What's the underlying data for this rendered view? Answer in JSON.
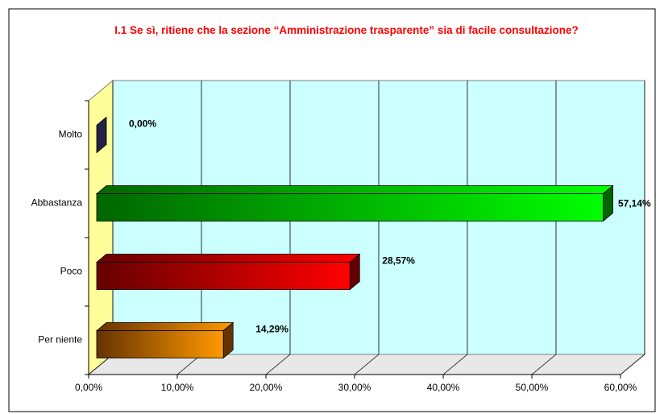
{
  "chart_data": {
    "type": "bar3d_horizontal",
    "title": "I.1 Se sì, ritiene che la sezione “Amministrazione trasparente” sia di facile consultazione?",
    "categories": [
      "Molto",
      "Abbastanza",
      "Poco",
      "Per niente"
    ],
    "values": [
      0,
      57.14,
      28.57,
      14.29
    ],
    "value_labels": [
      "0,00%",
      "57,14%",
      "28,57%",
      "14,29%"
    ],
    "colors": [
      [
        "#222244",
        "#444477"
      ],
      [
        "#006600",
        "#00ff00"
      ],
      [
        "#660000",
        "#ff0000"
      ],
      [
        "#663300",
        "#ff9900"
      ]
    ],
    "xlim": [
      0,
      60
    ],
    "xticks": [
      {
        "value": 0,
        "label": "0,00%"
      },
      {
        "value": 10,
        "label": "10,00%"
      },
      {
        "value": 20,
        "label": "20,00%"
      },
      {
        "value": 30,
        "label": "30,00%"
      },
      {
        "value": 40,
        "label": "40,00%"
      },
      {
        "value": 50,
        "label": "50,00%"
      },
      {
        "value": 60,
        "label": "60,00%"
      }
    ],
    "grid": true
  }
}
